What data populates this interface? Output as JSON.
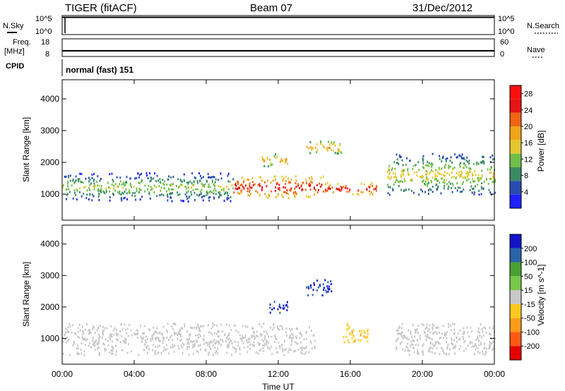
{
  "header": {
    "radar": "TIGER (fitACF)",
    "beam": "Beam 07",
    "date": "31/Dec/2012"
  },
  "nsky": {
    "label": "N.Sky",
    "ticks": [
      "10^5",
      "10^0"
    ],
    "right_label": "N.Search",
    "right_ticks": [
      "10^5",
      "10^0"
    ]
  },
  "freq": {
    "label_lines": [
      "Freq.",
      "[MHz]"
    ],
    "ticks": [
      "18",
      "8"
    ],
    "right_label": "Nave",
    "right_ticks": [
      "60",
      "0"
    ]
  },
  "cpid": {
    "label": "CPID",
    "text": "normal (fast) 151"
  },
  "colors": {
    "power": [
      "#1f1fff",
      "#2a4bb0",
      "#3a8a66",
      "#6fbf4a",
      "#e3c832",
      "#f0a418",
      "#f06414",
      "#e61414",
      "#ff1010"
    ],
    "velocity": [
      "#e60000",
      "#ff5a14",
      "#ff9a1a",
      "#ffc81e",
      "#c8c8c8",
      "#78c84a",
      "#4aa032",
      "#2a64a8",
      "#1414c8"
    ]
  },
  "chart_data": [
    {
      "type": "heatmap",
      "panel": "power",
      "x_label": "Time UT",
      "x_ticks": [
        "00:00",
        "04:00",
        "08:00",
        "12:00",
        "16:00",
        "20:00",
        "00:00"
      ],
      "xlim_hours": [
        0,
        24
      ],
      "y_label": "Slant Range [km]",
      "y_ticks": [
        1000,
        2000,
        3000,
        4000
      ],
      "ylim_km": [
        180,
        4600
      ],
      "colorbar_label": "Power [dB]",
      "colorbar_ticks": [
        4,
        8,
        12,
        16,
        20,
        24,
        28
      ],
      "colorbar_range": [
        0,
        30
      ],
      "features": [
        {
          "t0": 0.0,
          "t1": 9.5,
          "r0": 800,
          "r1": 1700,
          "value": 14
        },
        {
          "t0": 9.5,
          "t1": 14.5,
          "r0": 900,
          "r1": 1600,
          "value": 26
        },
        {
          "t0": 14.5,
          "t1": 17.5,
          "r0": 1000,
          "r1": 1400,
          "value": 26
        },
        {
          "t0": 18.0,
          "t1": 24.0,
          "r0": 1000,
          "r1": 2300,
          "value": 16
        },
        {
          "t0": 11.0,
          "t1": 12.5,
          "r0": 1900,
          "r1": 2300,
          "value": 20
        },
        {
          "t0": 13.5,
          "t1": 15.5,
          "r0": 2300,
          "r1": 2700,
          "value": 20
        }
      ]
    },
    {
      "type": "heatmap",
      "panel": "velocity",
      "x_label": "Time UT",
      "x_ticks": [
        "00:00",
        "04:00",
        "08:00",
        "12:00",
        "16:00",
        "20:00",
        "00:00"
      ],
      "xlim_hours": [
        0,
        24
      ],
      "y_label": "Slant Range [km]",
      "y_ticks": [
        1000,
        2000,
        3000,
        4000
      ],
      "ylim_km": [
        180,
        4600
      ],
      "colorbar_label": "Velocity [m s^-1]",
      "colorbar_ticks": [
        200,
        100,
        50,
        15,
        -15,
        -50,
        -100,
        -200
      ],
      "colorbar_range": [
        -250,
        250
      ],
      "features": [
        {
          "t0": 0.0,
          "t1": 14.0,
          "r0": 500,
          "r1": 1500,
          "value": 0
        },
        {
          "t0": 11.5,
          "t1": 12.5,
          "r0": 1800,
          "r1": 2200,
          "value": 200
        },
        {
          "t0": 13.5,
          "t1": 15.0,
          "r0": 2400,
          "r1": 2900,
          "value": 200
        },
        {
          "t0": 15.5,
          "t1": 17.0,
          "r0": 900,
          "r1": 1500,
          "value": -60
        },
        {
          "t0": 18.5,
          "t1": 24.0,
          "r0": 500,
          "r1": 1500,
          "value": 0
        }
      ]
    }
  ]
}
